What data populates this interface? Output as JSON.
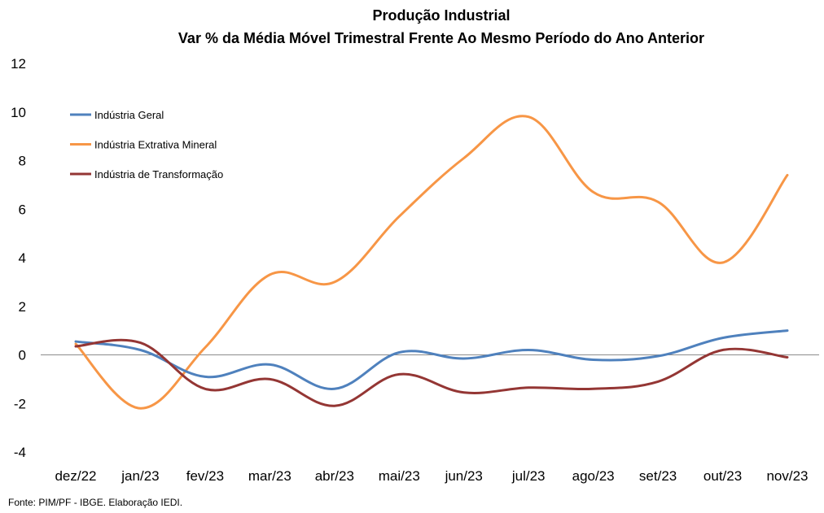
{
  "chart_data": {
    "type": "line",
    "title": "Produção Industrial",
    "subtitle": "Var % da Média Móvel Trimestral Frente Ao Mesmo Período do Ano Anterior",
    "xlabel": "",
    "ylabel": "",
    "categories": [
      "dez/22",
      "jan/23",
      "fev/23",
      "mar/23",
      "abr/23",
      "mai/23",
      "jun/23",
      "jul/23",
      "ago/23",
      "set/23",
      "out/23",
      "nov/23"
    ],
    "ylim": [
      -4,
      12
    ],
    "yticks": [
      "-4",
      "-2",
      "0",
      "2",
      "4",
      "6",
      "8",
      "10",
      "12"
    ],
    "grid": false,
    "legend_position": "top-left",
    "series": [
      {
        "name": "Indústria Geral",
        "color": "#4F81BD",
        "values": [
          0.55,
          0.2,
          -0.9,
          -0.4,
          -1.4,
          0.1,
          -0.15,
          0.2,
          -0.2,
          -0.05,
          0.7,
          1.0
        ]
      },
      {
        "name": "Indústria Extrativa Mineral",
        "color": "#F79646",
        "values": [
          0.45,
          -2.2,
          0.3,
          3.3,
          3.0,
          5.7,
          8.1,
          9.8,
          6.7,
          6.3,
          3.8,
          7.4
        ]
      },
      {
        "name": "Indústria de Transformação",
        "color": "#943634",
        "values": [
          0.35,
          0.5,
          -1.4,
          -1.0,
          -2.1,
          -0.8,
          -1.55,
          -1.35,
          -1.4,
          -1.1,
          0.2,
          -0.1
        ]
      }
    ]
  },
  "footer": {
    "source": "Fonte: PIM/PF - IBGE. Elaboração IEDI."
  }
}
